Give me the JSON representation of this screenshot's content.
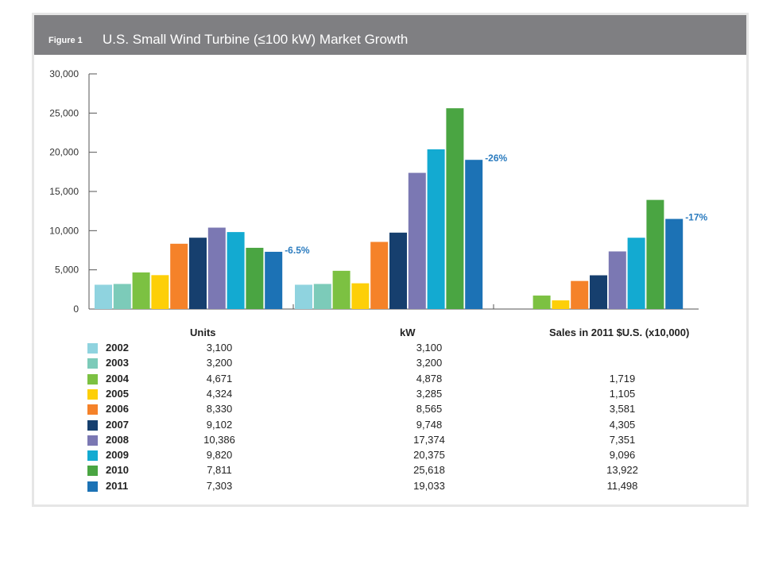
{
  "header": {
    "figure_label": "Figure 1",
    "title": "U.S. Small Wind Turbine (≤100 kW) Market Growth"
  },
  "chart_data": {
    "type": "bar",
    "title": "U.S. Small Wind Turbine (≤100 kW) Market Growth",
    "ylim": [
      0,
      30000
    ],
    "y_ticks": [
      "0",
      "5,000",
      "10,000",
      "15,000",
      "20,000",
      "25,000",
      "30,000"
    ],
    "grid": false,
    "categories": [
      "Units",
      "kW",
      "Sales in 2011 $U.S. (x10,000)"
    ],
    "series": [
      {
        "name": "2002",
        "color": "#8fd3df",
        "values": [
          3100,
          3100,
          null
        ]
      },
      {
        "name": "2003",
        "color": "#7ccbb9",
        "values": [
          3200,
          3200,
          null
        ]
      },
      {
        "name": "2004",
        "color": "#7cc142",
        "values": [
          4671,
          4878,
          1719
        ]
      },
      {
        "name": "2005",
        "color": "#fdcf08",
        "values": [
          4324,
          3285,
          1105
        ]
      },
      {
        "name": "2006",
        "color": "#f58229",
        "values": [
          8330,
          8565,
          3581
        ]
      },
      {
        "name": "2007",
        "color": "#163f6e",
        "values": [
          9102,
          9748,
          4305
        ]
      },
      {
        "name": "2008",
        "color": "#7b78b3",
        "values": [
          10386,
          17374,
          7351
        ]
      },
      {
        "name": "2009",
        "color": "#13aad1",
        "values": [
          9820,
          20375,
          9096
        ]
      },
      {
        "name": "2010",
        "color": "#4aa542",
        "values": [
          7811,
          25618,
          13922
        ]
      },
      {
        "name": "2011",
        "color": "#1c72b5",
        "values": [
          7303,
          19033,
          11498
        ]
      }
    ],
    "annotations": [
      "-6.5%",
      "-26%",
      "-17%"
    ]
  },
  "table": {
    "headers": [
      "Units",
      "kW",
      "Sales in 2011 $U.S. (x10,000)"
    ],
    "rows": [
      {
        "year": "2002",
        "units": "3,100",
        "kw": "3,100",
        "sales": ""
      },
      {
        "year": "2003",
        "units": "3,200",
        "kw": "3,200",
        "sales": ""
      },
      {
        "year": "2004",
        "units": "4,671",
        "kw": "4,878",
        "sales": "1,719"
      },
      {
        "year": "2005",
        "units": "4,324",
        "kw": "3,285",
        "sales": "1,105"
      },
      {
        "year": "2006",
        "units": "8,330",
        "kw": "8,565",
        "sales": "3,581"
      },
      {
        "year": "2007",
        "units": "9,102",
        "kw": "9,748",
        "sales": "4,305"
      },
      {
        "year": "2008",
        "units": "10,386",
        "kw": "17,374",
        "sales": "7,351"
      },
      {
        "year": "2009",
        "units": "9,820",
        "kw": "20,375",
        "sales": "9,096"
      },
      {
        "year": "2010",
        "units": "7,811",
        "kw": "25,618",
        "sales": "13,922"
      },
      {
        "year": "2011",
        "units": "7,303",
        "kw": "19,033",
        "sales": "11,498"
      }
    ]
  }
}
